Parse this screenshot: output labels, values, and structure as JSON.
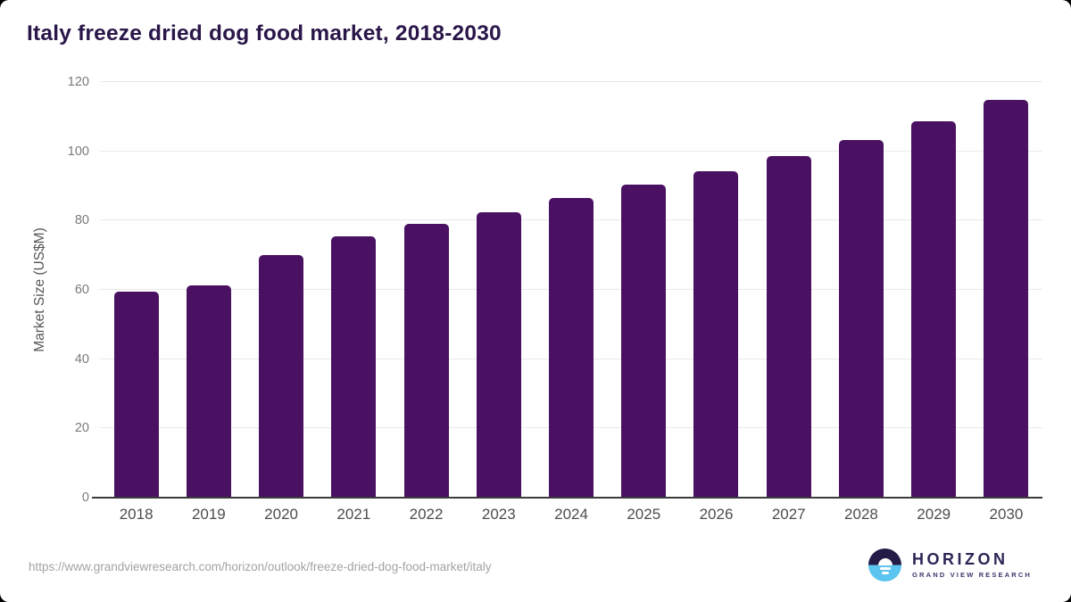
{
  "title": "Italy freeze dried dog food market, 2018-2030",
  "chart_data": {
    "type": "bar",
    "title": "Italy freeze dried dog food market, 2018-2030",
    "categories": [
      "2018",
      "2019",
      "2020",
      "2021",
      "2022",
      "2023",
      "2024",
      "2025",
      "2026",
      "2027",
      "2028",
      "2029",
      "2030"
    ],
    "values": [
      59.6,
      61.3,
      70.1,
      75.5,
      79.1,
      82.3,
      86.4,
      90.4,
      94.2,
      98.7,
      103.2,
      108.8,
      114.9
    ],
    "xlabel": "",
    "ylabel": "Market Size (US$M)",
    "ylim": [
      0,
      120
    ],
    "yticks": [
      0,
      20,
      40,
      60,
      80,
      100,
      120
    ],
    "grid": "horizontal",
    "legend": "none",
    "bar_color": "#4a1162"
  },
  "footer": {
    "source_url": "https://www.grandviewresearch.com/horizon/outlook/freeze-dried-dog-food-market/italy",
    "logo": {
      "name": "HORIZON",
      "tagline": "GRAND VIEW RESEARCH"
    }
  },
  "colors": {
    "bar": "#4a1162",
    "title_text": "#2a1649",
    "axis_line": "#3b3b3b",
    "gridline": "#e9e9ec",
    "tick_text": "#7a7a7a",
    "year_text": "#4d4d4d",
    "logo_navy": "#241b47",
    "logo_blue": "#5bc5f0"
  }
}
